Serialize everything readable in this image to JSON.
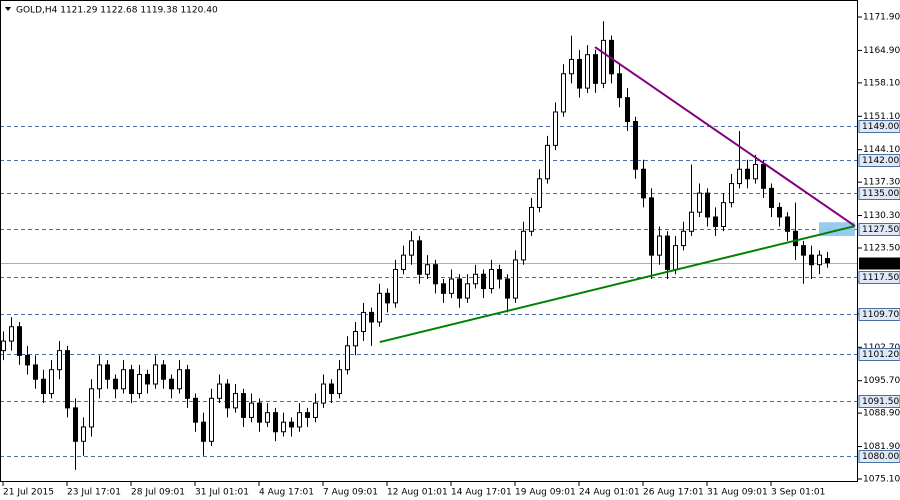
{
  "chart_data": {
    "type": "candlestick",
    "title": "GOLD,H4  1121.29 1122.68 1119.38 1120.40",
    "candles": [
      [
        1102,
        1106,
        1100,
        1104
      ],
      [
        1104,
        1109,
        1102,
        1107
      ],
      [
        1107,
        1108,
        1099,
        1101
      ],
      [
        1101,
        1103,
        1097,
        1099
      ],
      [
        1099,
        1101,
        1094,
        1096
      ],
      [
        1096,
        1098,
        1091,
        1093
      ],
      [
        1093,
        1100,
        1092,
        1098
      ],
      [
        1098,
        1104,
        1096,
        1102
      ],
      [
        1102,
        1103,
        1088,
        1090
      ],
      [
        1090,
        1092,
        1077,
        1083
      ],
      [
        1083,
        1088,
        1080,
        1086
      ],
      [
        1086,
        1096,
        1084,
        1094
      ],
      [
        1094,
        1101,
        1092,
        1099
      ],
      [
        1099,
        1100,
        1094,
        1096
      ],
      [
        1096,
        1097,
        1092,
        1094
      ],
      [
        1094,
        1100,
        1093,
        1098
      ],
      [
        1098,
        1099,
        1091,
        1093
      ],
      [
        1093,
        1099,
        1092,
        1097
      ],
      [
        1097,
        1098,
        1093,
        1095
      ],
      [
        1095,
        1101,
        1094,
        1099
      ],
      [
        1099,
        1100,
        1094,
        1096
      ],
      [
        1096,
        1097,
        1092,
        1094
      ],
      [
        1094,
        1100,
        1093,
        1098
      ],
      [
        1098,
        1099,
        1090,
        1092
      ],
      [
        1092,
        1093,
        1085,
        1087
      ],
      [
        1087,
        1089,
        1080,
        1083
      ],
      [
        1083,
        1094,
        1082,
        1092
      ],
      [
        1092,
        1097,
        1091,
        1095
      ],
      [
        1095,
        1096,
        1088,
        1090
      ],
      [
        1090,
        1095,
        1089,
        1093
      ],
      [
        1093,
        1094,
        1086,
        1088
      ],
      [
        1088,
        1093,
        1087,
        1091
      ],
      [
        1091,
        1092,
        1085,
        1087
      ],
      [
        1087,
        1091,
        1086,
        1089
      ],
      [
        1089,
        1090,
        1083,
        1085
      ],
      [
        1085,
        1089,
        1084,
        1087
      ],
      [
        1087,
        1088,
        1084,
        1086
      ],
      [
        1086,
        1091,
        1085,
        1089
      ],
      [
        1089,
        1090,
        1086,
        1088
      ],
      [
        1088,
        1093,
        1087,
        1091
      ],
      [
        1091,
        1097,
        1090,
        1095
      ],
      [
        1095,
        1096,
        1091,
        1093
      ],
      [
        1093,
        1100,
        1092,
        1098
      ],
      [
        1098,
        1105,
        1097,
        1103
      ],
      [
        1103,
        1108,
        1101,
        1106
      ],
      [
        1106,
        1112,
        1104,
        1110
      ],
      [
        1110,
        1111,
        1103,
        1108
      ],
      [
        1108,
        1116,
        1107,
        1114
      ],
      [
        1114,
        1115,
        1110,
        1112
      ],
      [
        1112,
        1121,
        1111,
        1119
      ],
      [
        1119,
        1124,
        1118,
        1122
      ],
      [
        1122,
        1127,
        1120,
        1125
      ],
      [
        1125,
        1126,
        1116,
        1118
      ],
      [
        1118,
        1122,
        1117,
        1120
      ],
      [
        1120,
        1121,
        1114,
        1116
      ],
      [
        1116,
        1117,
        1112,
        1114
      ],
      [
        1114,
        1119,
        1113,
        1117
      ],
      [
        1117,
        1118,
        1111,
        1113
      ],
      [
        1113,
        1118,
        1112,
        1116
      ],
      [
        1116,
        1120,
        1115,
        1118
      ],
      [
        1118,
        1119,
        1113,
        1115
      ],
      [
        1115,
        1121,
        1114,
        1119
      ],
      [
        1119,
        1120,
        1115,
        1117
      ],
      [
        1117,
        1118,
        1110,
        1113
      ],
      [
        1113,
        1123,
        1112,
        1121
      ],
      [
        1121,
        1129,
        1120,
        1127
      ],
      [
        1127,
        1134,
        1126,
        1132
      ],
      [
        1132,
        1140,
        1131,
        1138
      ],
      [
        1138,
        1147,
        1137,
        1145
      ],
      [
        1145,
        1154,
        1144,
        1152
      ],
      [
        1152,
        1162,
        1151,
        1160
      ],
      [
        1160,
        1168,
        1158,
        1163
      ],
      [
        1163,
        1165,
        1155,
        1157
      ],
      [
        1157,
        1166,
        1156,
        1164
      ],
      [
        1164,
        1165,
        1156,
        1158
      ],
      [
        1158,
        1171,
        1157,
        1167
      ],
      [
        1167,
        1168,
        1158,
        1160
      ],
      [
        1160,
        1162,
        1153,
        1155
      ],
      [
        1155,
        1157,
        1148,
        1150
      ],
      [
        1150,
        1151,
        1138,
        1140
      ],
      [
        1140,
        1142,
        1132,
        1134
      ],
      [
        1134,
        1136,
        1117,
        1122
      ],
      [
        1122,
        1128,
        1120,
        1126
      ],
      [
        1126,
        1127,
        1117,
        1119
      ],
      [
        1119,
        1126,
        1118,
        1124
      ],
      [
        1124,
        1129,
        1123,
        1127
      ],
      [
        1127,
        1141,
        1126,
        1131
      ],
      [
        1131,
        1137,
        1130,
        1135
      ],
      [
        1135,
        1136,
        1128,
        1130
      ],
      [
        1130,
        1132,
        1126,
        1128
      ],
      [
        1128,
        1135,
        1127,
        1133
      ],
      [
        1133,
        1139,
        1132,
        1137
      ],
      [
        1137,
        1148,
        1136,
        1140
      ],
      [
        1140,
        1142,
        1136,
        1138
      ],
      [
        1138,
        1143,
        1137,
        1141
      ],
      [
        1141,
        1142,
        1134,
        1136
      ],
      [
        1136,
        1137,
        1130,
        1132
      ],
      [
        1132,
        1133,
        1128,
        1130
      ],
      [
        1130,
        1131,
        1125,
        1127
      ],
      [
        1127,
        1133,
        1121,
        1124
      ],
      [
        1124,
        1125,
        1116,
        1122
      ],
      [
        1122,
        1124,
        1117,
        1120
      ],
      [
        1120,
        1123,
        1118,
        1122
      ],
      [
        1121.29,
        1122.68,
        1119.38,
        1120.4
      ]
    ],
    "xlim": [
      -0.375,
      106.875
    ],
    "xticks": [
      {
        "value": 0,
        "label": "21 Jul 2015"
      },
      {
        "value": 8,
        "label": "23 Jul 17:01"
      },
      {
        "value": 16,
        "label": "28 Jul 09:01"
      },
      {
        "value": 24,
        "label": "31 Jul 01:01"
      },
      {
        "value": 32,
        "label": "4 Aug 17:01"
      },
      {
        "value": 40,
        "label": "7 Aug 09:01"
      },
      {
        "value": 48,
        "label": "12 Aug 01:01"
      },
      {
        "value": 56,
        "label": "14 Aug 17:01"
      },
      {
        "value": 64,
        "label": "19 Aug 09:01"
      },
      {
        "value": 72,
        "label": "24 Aug 01:01"
      },
      {
        "value": 80,
        "label": "26 Aug 17:01"
      },
      {
        "value": 88,
        "label": "31 Aug 09:01"
      },
      {
        "value": 96,
        "label": "3 Sep 01:01"
      }
    ],
    "ylim": [
      1074.47,
      1175.46
    ],
    "yticks": [
      {
        "value": 1171.9,
        "label": "1171.90"
      },
      {
        "value": 1164.9,
        "label": "1164.90"
      },
      {
        "value": 1158.1,
        "label": "1158.10"
      },
      {
        "value": 1151.1,
        "label": "1151.10"
      },
      {
        "value": 1144.1,
        "label": "1144.10"
      },
      {
        "value": 1137.3,
        "label": "1137.30"
      },
      {
        "value": 1130.3,
        "label": "1130.30"
      },
      {
        "value": 1123.5,
        "label": "1123.50"
      },
      {
        "value": 1116.5,
        "label": "1116.50"
      },
      {
        "value": 1109.7,
        "label": "1109.70"
      },
      {
        "value": 1102.7,
        "label": "1102.70"
      },
      {
        "value": 1095.7,
        "label": "1095.70"
      },
      {
        "value": 1088.9,
        "label": "1088.90"
      },
      {
        "value": 1081.9,
        "label": "1081.90"
      },
      {
        "value": 1075.1,
        "label": "1075.10"
      }
    ],
    "levels": [
      {
        "value": 1149,
        "label": "1149.00"
      },
      {
        "value": 1142,
        "label": "1142.00"
      },
      {
        "value": 1135,
        "label": "1135.00"
      },
      {
        "value": 1127.5,
        "label": "1127.50"
      },
      {
        "value": 1117.5,
        "label": "1117.50"
      },
      {
        "value": 1109.7,
        "label": "1109.70"
      },
      {
        "value": 1101.2,
        "label": "1101.20"
      },
      {
        "value": 1091.5,
        "label": "1091.50"
      },
      {
        "value": 1080,
        "label": "1080.00"
      }
    ],
    "last_price": {
      "value": 1120.4,
      "label": "1120.40"
    },
    "trendlines": [
      {
        "color": "#800080",
        "points": [
          [
            74,
            1165.6
          ],
          [
            106.5,
            1128.1
          ]
        ]
      },
      {
        "color": "#008000",
        "points": [
          [
            47.1,
            1103.8
          ],
          [
            106.5,
            1128.1
          ]
        ]
      }
    ],
    "zone": {
      "color": "#8ec6ea",
      "x": [
        102,
        106.5
      ],
      "y": [
        1126,
        1128.9
      ]
    }
  }
}
